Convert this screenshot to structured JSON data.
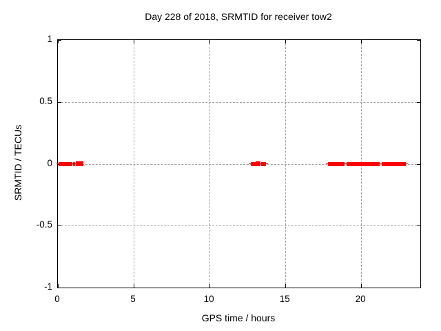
{
  "chart_data": {
    "type": "scatter",
    "title": "Day 228 of 2018, SRMTID for receiver tow2",
    "xlabel": "GPS time / hours",
    "ylabel": "SRMTID / TECUs",
    "xlim": [
      0,
      23.9
    ],
    "ylim": [
      -1,
      1
    ],
    "x_ticks": {
      "values": [
        0,
        5,
        10,
        15,
        20
      ],
      "labels": [
        "0",
        "5",
        "10",
        "15",
        "20"
      ]
    },
    "y_ticks": {
      "values": [
        -1,
        -0.5,
        0,
        0.5,
        1
      ],
      "labels": [
        "-1",
        "-0.5",
        "0",
        "0.5",
        "1"
      ]
    },
    "grid": true,
    "legend": "none",
    "marker": "plus",
    "marker_color": "#ff0000",
    "grid_color": "#a0a0a0",
    "axis_color": "#000000",
    "background_color": "#ffffff",
    "series": [
      {
        "name": "SRMTID",
        "y_value": 0,
        "dense_segments_hours": [
          [
            0.05,
            0.95
          ],
          [
            1.0,
            1.12
          ],
          [
            12.7,
            13.05
          ],
          [
            13.4,
            13.7
          ],
          [
            17.8,
            18.9
          ],
          [
            19.05,
            21.2
          ],
          [
            21.35,
            22.95
          ]
        ],
        "isolated_points_hours": [
          1.32,
          1.5,
          13.2
        ]
      }
    ]
  }
}
